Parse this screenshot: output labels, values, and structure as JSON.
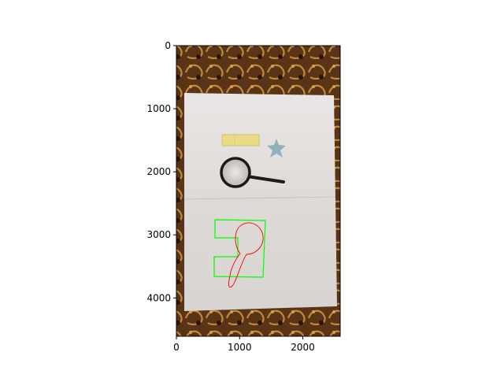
{
  "figure": {
    "axis": {
      "xlim": [
        0,
        2592
      ],
      "ylim": [
        4608,
        0
      ],
      "y_inverted": true,
      "xticks": [
        {
          "value": 0,
          "label": "0"
        },
        {
          "value": 1000,
          "label": "1000"
        },
        {
          "value": 2000,
          "label": "2000"
        }
      ],
      "yticks": [
        {
          "value": 0,
          "label": "0"
        },
        {
          "value": 1000,
          "label": "1000"
        },
        {
          "value": 2000,
          "label": "2000"
        },
        {
          "value": 3000,
          "label": "3000"
        },
        {
          "value": 4000,
          "label": "4000"
        }
      ]
    },
    "image_content": {
      "description_icons": [
        "carpet-background",
        "paper-sheet",
        "sticky-note",
        "star-sticker",
        "magnifying-glass"
      ],
      "overlay_colors": {
        "green_outline": "#00ff00",
        "red_outline": "#ff0000"
      }
    }
  }
}
